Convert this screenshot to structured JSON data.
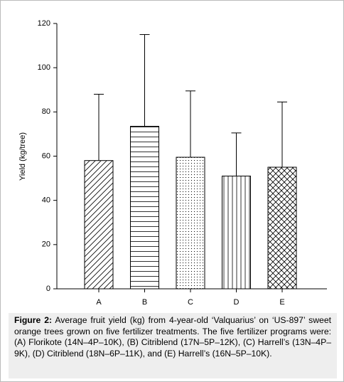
{
  "chart_data": {
    "type": "bar",
    "y_label": "Yield (kg/tree)",
    "categories": [
      "A",
      "B",
      "C",
      "D",
      "E"
    ],
    "values": [
      58,
      73.5,
      59.5,
      51,
      55
    ],
    "errors": [
      30,
      41.5,
      30,
      19.5,
      29.5
    ],
    "hatches": [
      "/",
      "-",
      ".",
      "|",
      "x"
    ],
    "color": "#000000",
    "ylim": [
      0,
      120
    ],
    "yticks": [
      0,
      20,
      40,
      60,
      80,
      100,
      120
    ],
    "grid": false
  },
  "caption": {
    "label": "Figure 2:",
    "text": "Average fruit yield (kg) from 4-year-old ‘Valquarius’ on ‘US-897’ sweet orange trees grown on five fertilizer treatments. The five fertilizer programs were: (A) Florikote (14N–4P–10K), (B) Citriblend (17N–5P–12K), (C) Harrell’s (13N–4P–9K), (D) Citriblend (18N–6P–11K), and (E) Harrell’s (16N–5P–10K)."
  }
}
